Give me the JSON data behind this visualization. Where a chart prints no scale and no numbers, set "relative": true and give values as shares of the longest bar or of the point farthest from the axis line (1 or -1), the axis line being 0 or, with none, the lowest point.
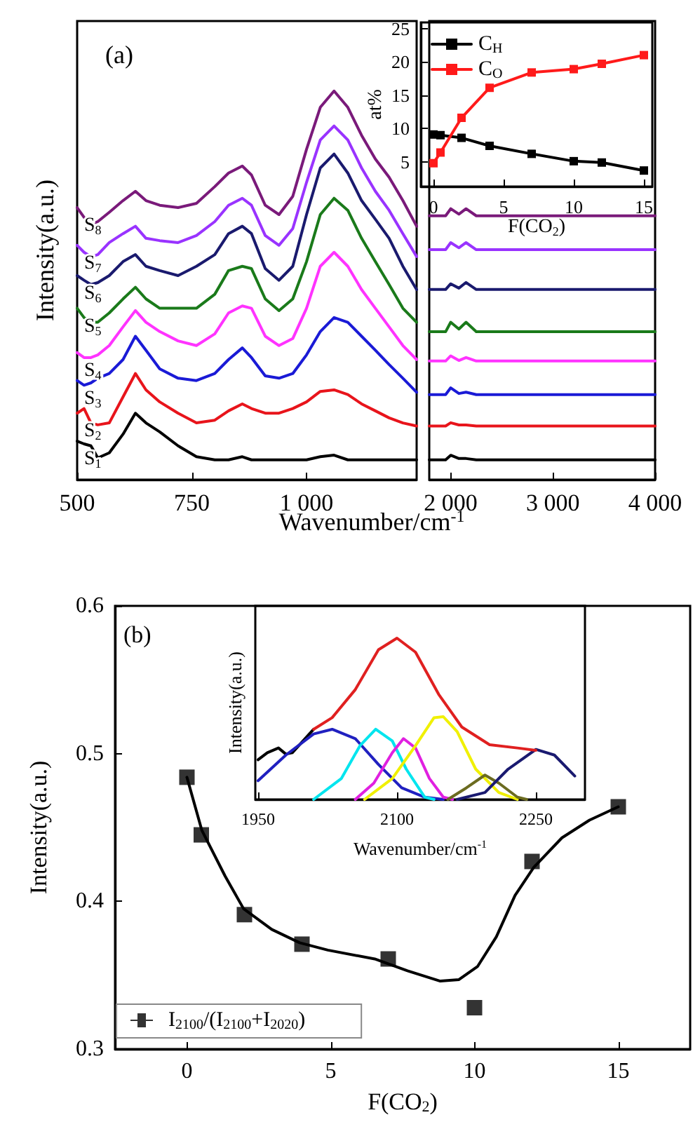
{
  "chart_data": [
    {
      "type": "line",
      "relative": true,
      "xlabel": "Wavenumber/cm$^{-1}$",
      "ylabel": "Intensity(a.u.)",
      "annotations": [
        "(a)"
      ],
      "marker": "none",
      "line_style": "solid",
      "x": [
        500,
        515,
        530,
        545,
        570,
        600,
        627,
        650,
        680,
        720,
        760,
        800,
        830,
        860,
        880,
        910,
        940,
        970,
        1000,
        1030,
        1060,
        1090,
        1120,
        1150,
        1180,
        1210,
        1240
      ],
      "xlim": [
        500,
        1240
      ],
      "xticks": [
        500,
        750,
        {
          "value": 1000,
          "label": "1 000"
        }
      ],
      "series": [
        {
          "name": "S$_{1}$",
          "color": "#000000",
          "values": [
            0.099,
            0.092,
            0.087,
            0.056,
            0.069,
            0.117,
            0.171,
            0.146,
            0.123,
            0.087,
            0.059,
            0.051,
            0.051,
            0.059,
            0.051,
            0.051,
            0.051,
            0.051,
            0.051,
            0.059,
            0.063,
            0.051,
            0.051,
            0.051,
            0.051,
            0.051,
            0.051
          ]
        },
        {
          "name": "S$_{2}$",
          "color": "#e8141b",
          "values": [
            0.171,
            0.183,
            0.146,
            0.141,
            0.146,
            0.213,
            0.273,
            0.231,
            0.2,
            0.171,
            0.146,
            0.153,
            0.177,
            0.195,
            0.183,
            0.171,
            0.171,
            0.183,
            0.2,
            0.227,
            0.231,
            0.219,
            0.195,
            0.177,
            0.159,
            0.146,
            0.138
          ]
        },
        {
          "name": "S$_{3}$",
          "color": "#1a1ad6",
          "values": [
            0.255,
            0.243,
            0.249,
            0.261,
            0.273,
            0.309,
            0.369,
            0.333,
            0.285,
            0.261,
            0.255,
            0.273,
            0.309,
            0.339,
            0.314,
            0.267,
            0.261,
            0.273,
            0.321,
            0.381,
            0.417,
            0.405,
            0.369,
            0.333,
            0.296,
            0.261,
            0.225
          ]
        },
        {
          "name": "S$_{4}$",
          "color": "#ff33ff",
          "values": [
            0.327,
            0.314,
            0.314,
            0.321,
            0.345,
            0.393,
            0.435,
            0.405,
            0.381,
            0.357,
            0.345,
            0.375,
            0.429,
            0.447,
            0.441,
            0.369,
            0.345,
            0.363,
            0.441,
            0.549,
            0.585,
            0.549,
            0.489,
            0.441,
            0.393,
            0.345,
            0.309
          ]
        },
        {
          "name": "S$_{5}$",
          "color": "#1a7a1a",
          "values": [
            0.441,
            0.417,
            0.405,
            0.405,
            0.429,
            0.465,
            0.495,
            0.465,
            0.441,
            0.441,
            0.441,
            0.477,
            0.538,
            0.549,
            0.543,
            0.465,
            0.435,
            0.465,
            0.561,
            0.682,
            0.724,
            0.693,
            0.621,
            0.561,
            0.502,
            0.441,
            0.405
          ]
        },
        {
          "name": "S$_{6}$",
          "color": "#1a1a6e",
          "values": [
            0.525,
            0.513,
            0.502,
            0.507,
            0.525,
            0.561,
            0.579,
            0.549,
            0.538,
            0.525,
            0.549,
            0.579,
            0.633,
            0.652,
            0.633,
            0.543,
            0.513,
            0.549,
            0.682,
            0.802,
            0.838,
            0.789,
            0.718,
            0.67,
            0.621,
            0.549,
            0.489
          ]
        },
        {
          "name": "S$_{7}$",
          "color": "#9933ff",
          "values": [
            0.603,
            0.585,
            0.574,
            0.579,
            0.61,
            0.633,
            0.652,
            0.621,
            0.615,
            0.61,
            0.628,
            0.664,
            0.706,
            0.724,
            0.706,
            0.628,
            0.603,
            0.646,
            0.765,
            0.874,
            0.91,
            0.874,
            0.802,
            0.742,
            0.693,
            0.633,
            0.574
          ]
        },
        {
          "name": "S$_{8}$",
          "color": "#7a1a7a",
          "values": [
            0.7,
            0.675,
            0.657,
            0.664,
            0.688,
            0.718,
            0.742,
            0.718,
            0.706,
            0.7,
            0.711,
            0.754,
            0.789,
            0.807,
            0.784,
            0.706,
            0.682,
            0.729,
            0.85,
            0.958,
            1,
            0.958,
            0.886,
            0.825,
            0.778,
            0.718,
            0.652
          ]
        }
      ]
    },
    {
      "type": "line",
      "relative": true,
      "marker": "none",
      "line_style": "solid",
      "x": [
        1790,
        1950,
        2000,
        2080,
        2150,
        2250,
        2400,
        4000
      ],
      "xlim": [
        1790,
        4000
      ],
      "xticks": [
        {
          "value": 2000,
          "label": "2 000"
        },
        {
          "value": 3000,
          "label": "3 000"
        },
        {
          "value": 4000,
          "label": "4 000"
        }
      ],
      "series": [
        {
          "color": "#000000",
          "values": [
            0.073,
            0.073,
            0.09,
            0.078,
            0.078,
            0.073,
            0.073,
            0.073
          ]
        },
        {
          "color": "#e8141b",
          "values": [
            0.198,
            0.198,
            0.21,
            0.202,
            0.202,
            0.198,
            0.198,
            0.198
          ]
        },
        {
          "color": "#1a1ad6",
          "values": [
            0.314,
            0.314,
            0.339,
            0.318,
            0.323,
            0.314,
            0.314,
            0.314
          ]
        },
        {
          "color": "#ff33ff",
          "values": [
            0.438,
            0.438,
            0.457,
            0.44,
            0.451,
            0.438,
            0.438,
            0.438
          ]
        },
        {
          "color": "#1a7a1a",
          "values": [
            0.546,
            0.546,
            0.581,
            0.556,
            0.581,
            0.546,
            0.546,
            0.546
          ]
        },
        {
          "color": "#1a1a6e",
          "values": [
            0.702,
            0.702,
            0.723,
            0.707,
            0.728,
            0.702,
            0.702,
            0.702
          ]
        },
        {
          "color": "#9933ff",
          "values": [
            0.849,
            0.849,
            0.875,
            0.856,
            0.875,
            0.849,
            0.849,
            0.849
          ]
        },
        {
          "color": "#7a1a7a",
          "values": [
            0.974,
            0.974,
            1,
            0.98,
            1,
            0.974,
            0.974,
            0.974
          ]
        }
      ]
    },
    {
      "type": "line",
      "xlabel": "F(CO$_{2}$)",
      "ylabel": "at%",
      "marker": "square",
      "line_style": "solid",
      "legend": "top left",
      "x": [
        0,
        0.5,
        2,
        4,
        7,
        10,
        12,
        15
      ],
      "xlim": [
        -0.9,
        15.6
      ],
      "xticks": [
        0,
        5,
        10,
        15
      ],
      "ylim": [
        1.3,
        25.9
      ],
      "yticks": [
        5,
        10,
        15,
        20,
        25
      ],
      "series": [
        {
          "name": "C$_{H}$",
          "color": "#000000",
          "values": [
            9.1,
            9.0,
            8.6,
            7.4,
            6.2,
            5.1,
            4.9,
            3.7
          ]
        },
        {
          "name": "C$_{O}$",
          "color": "#ff1a1a",
          "values": [
            4.8,
            6.4,
            11.6,
            16.1,
            18.4,
            18.9,
            19.7,
            21.0
          ]
        }
      ]
    },
    {
      "type": "scatter",
      "xlabel": "F(CO$_{2}$)",
      "ylabel": "Intensity(a.u.)",
      "annotations": [
        "(b)"
      ],
      "legend": "bottom left",
      "xlim": [
        -2.5,
        17.5
      ],
      "xticks": [
        0,
        5,
        10,
        15
      ],
      "ylim": [
        0.3,
        0.6
      ],
      "yticks": [
        0.3,
        0.4,
        0.5,
        0.6
      ],
      "series": [
        {
          "name": "I$_{2100}$/(I$_{2100}$+I$_{2020}$)",
          "color": "#000000",
          "marker": "square",
          "x": [
            0,
            0.5,
            2,
            4,
            7,
            10,
            12,
            15
          ],
          "values": [
            0.484,
            0.445,
            0.391,
            0.371,
            0.361,
            0.328,
            0.427,
            0.464
          ]
        },
        {
          "type": "line",
          "color": "#000000",
          "marker": "none",
          "line_style": "solid",
          "x": [
            0,
            0.52,
            1.33,
            1.97,
            2.95,
            3.92,
            4.9,
            6.53,
            7.67,
            8.81,
            9.46,
            10.11,
            10.76,
            11.41,
            12.06,
            13.04,
            14.0,
            15.0
          ],
          "values": [
            0.484,
            0.448,
            0.417,
            0.395,
            0.381,
            0.372,
            0.367,
            0.361,
            0.353,
            0.346,
            0.347,
            0.356,
            0.376,
            0.404,
            0.423,
            0.443,
            0.455,
            0.464
          ]
        }
      ]
    },
    {
      "type": "line",
      "relative": true,
      "xlabel": "Wavenumber/cm$^{-1}$",
      "ylabel": "Intensity(a.u.)",
      "marker": "none",
      "line_style": "solid",
      "xlim": [
        1947,
        2303
      ],
      "xticks": [
        1950,
        2100,
        2250
      ],
      "series": [
        {
          "color": "#000000",
          "x": [
            1950,
            1960,
            1972,
            1980,
            1987,
            2010
          ],
          "values": [
            0.246,
            0.29,
            0.319,
            0.281,
            0.29,
            0.435
          ]
        },
        {
          "color": "#2020c0",
          "x": [
            1950,
            1980,
            2010,
            2030,
            2055,
            2080,
            2105,
            2130,
            2150
          ],
          "values": [
            0.116,
            0.275,
            0.406,
            0.435,
            0.377,
            0.217,
            0.072,
            0.014,
            0
          ]
        },
        {
          "color": "#00e5ee",
          "x": [
            2010,
            2040,
            2060,
            2077,
            2095,
            2110,
            2130,
            2140
          ],
          "values": [
            0,
            0.13,
            0.333,
            0.435,
            0.362,
            0.188,
            0.014,
            0
          ]
        },
        {
          "color": "#e020e0",
          "x": [
            2055,
            2075,
            2095,
            2107,
            2120,
            2135,
            2150,
            2160
          ],
          "values": [
            0,
            0.101,
            0.29,
            0.377,
            0.319,
            0.13,
            0.014,
            0
          ]
        },
        {
          "color": "#f0f000",
          "x": [
            2065,
            2095,
            2120,
            2140,
            2150,
            2165,
            2185,
            2210,
            2230
          ],
          "values": [
            0,
            0.13,
            0.333,
            0.507,
            0.513,
            0.42,
            0.188,
            0.043,
            0
          ]
        },
        {
          "color": "#6b6b20",
          "x": [
            2155,
            2175,
            2195,
            2210,
            2230,
            2240
          ],
          "values": [
            0,
            0.072,
            0.151,
            0.101,
            0.014,
            0
          ]
        },
        {
          "color": "#1a1a70",
          "x": [
            2165,
            2195,
            2220,
            2250,
            2270,
            2292
          ],
          "values": [
            0,
            0.043,
            0.188,
            0.31,
            0.275,
            0.145
          ]
        },
        {
          "color": "#e02020",
          "x": [
            2010,
            2030,
            2055,
            2080,
            2100,
            2120,
            2145,
            2170,
            2200,
            2230,
            2250
          ],
          "values": [
            0.435,
            0.507,
            0.681,
            0.928,
            1,
            0.913,
            0.652,
            0.449,
            0.339,
            0.319,
            0.304
          ]
        }
      ]
    }
  ]
}
